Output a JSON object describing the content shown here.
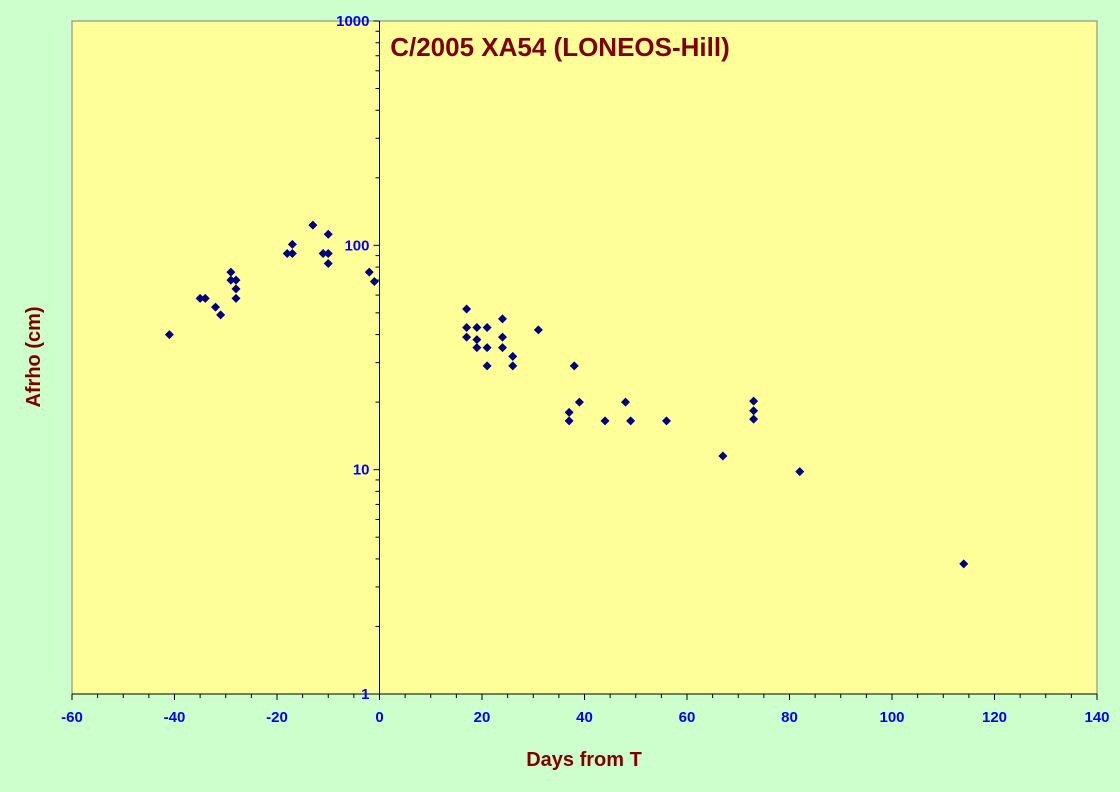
{
  "chart_data": {
    "type": "scatter",
    "title": "C/2005 XA54 (LONEOS-Hill)",
    "xlabel": "Days from T",
    "ylabel": "Afrho (cm)",
    "xlim": [
      -60,
      140
    ],
    "ylim": [
      1,
      1000
    ],
    "yscale": "log",
    "x_ticks": [
      "-60",
      "-40",
      "-20",
      "0",
      "20",
      "40",
      "60",
      "80",
      "100",
      "120",
      "140"
    ],
    "y_ticks": [
      "1",
      "10",
      "100",
      "1000"
    ],
    "grid": false,
    "legend": "none",
    "colors": {
      "page_background": "#ccffcc",
      "plot_background": "#ffff99",
      "marker": "#000080",
      "tick_labels": "#0000ff",
      "titles": "#800000",
      "axes": "#000000"
    },
    "series": [
      {
        "marker": "diamond",
        "points": [
          [
            -41,
            40
          ],
          [
            -35,
            58
          ],
          [
            -34,
            58
          ],
          [
            -32,
            53
          ],
          [
            -31,
            49
          ],
          [
            -29,
            76
          ],
          [
            -29,
            70
          ],
          [
            -28,
            70
          ],
          [
            -28,
            64
          ],
          [
            -28,
            58
          ],
          [
            -18,
            92
          ],
          [
            -17,
            92
          ],
          [
            -17,
            101
          ],
          [
            -13,
            123
          ],
          [
            -11,
            92
          ],
          [
            -10,
            112
          ],
          [
            -10,
            92
          ],
          [
            -10,
            83
          ],
          [
            -2,
            76
          ],
          [
            -1,
            69
          ],
          [
            17,
            52
          ],
          [
            17,
            43
          ],
          [
            17,
            39
          ],
          [
            19,
            43
          ],
          [
            19,
            38
          ],
          [
            19,
            35
          ],
          [
            21,
            43
          ],
          [
            21,
            35
          ],
          [
            21,
            29
          ],
          [
            24,
            47
          ],
          [
            24,
            39
          ],
          [
            24,
            35
          ],
          [
            26,
            32
          ],
          [
            26,
            29
          ],
          [
            31,
            42
          ],
          [
            37,
            18
          ],
          [
            37,
            16.5
          ],
          [
            38,
            29
          ],
          [
            39,
            20
          ],
          [
            44,
            16.5
          ],
          [
            48,
            20
          ],
          [
            49,
            16.5
          ],
          [
            56,
            16.5
          ],
          [
            67,
            11.5
          ],
          [
            73,
            20.2
          ],
          [
            73,
            18.3
          ],
          [
            73,
            16.8
          ],
          [
            82,
            9.8
          ],
          [
            114,
            3.8
          ]
        ]
      }
    ]
  }
}
